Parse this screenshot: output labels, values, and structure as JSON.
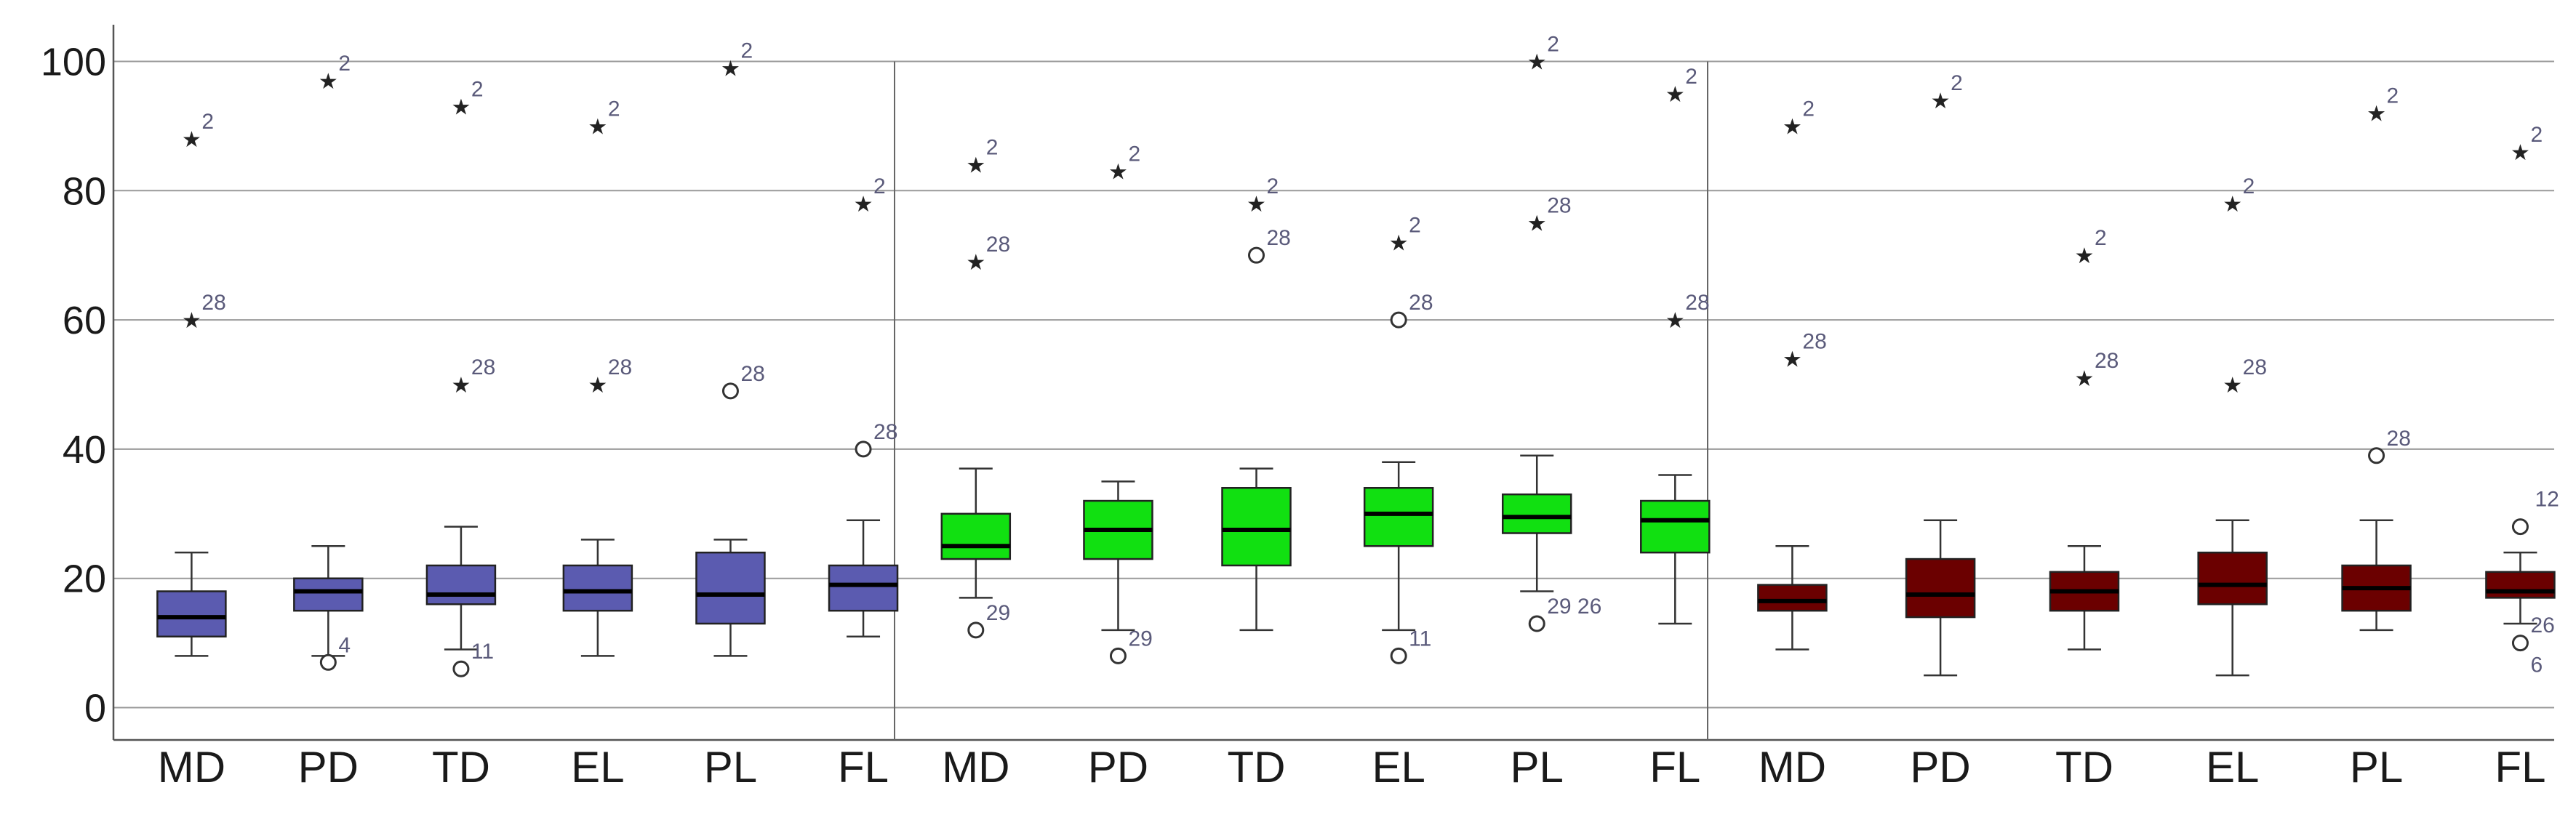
{
  "chart_data": {
    "type": "boxplot",
    "ylim": [
      -5,
      105
    ],
    "yticks": [
      0,
      20,
      40,
      60,
      80,
      100
    ],
    "grid": true,
    "categories": [
      "MD",
      "PD",
      "TD",
      "EL",
      "PL",
      "FL"
    ],
    "groups": [
      {
        "color": "#5b5bb0",
        "boxes": [
          {
            "cat": "MD",
            "whisker_low": 8,
            "q1": 11,
            "median": 14,
            "q3": 18,
            "whisker_high": 24,
            "outliers": [
              {
                "v": 60,
                "label": "28",
                "marker": "star"
              },
              {
                "v": 88,
                "label": "2",
                "marker": "star"
              }
            ]
          },
          {
            "cat": "PD",
            "whisker_low": 8,
            "q1": 15,
            "median": 18,
            "q3": 20,
            "whisker_high": 25,
            "outliers": [
              {
                "v": 7,
                "label": "4",
                "marker": "circle"
              },
              {
                "v": 97,
                "label": "2",
                "marker": "star"
              }
            ]
          },
          {
            "cat": "TD",
            "whisker_low": 9,
            "q1": 16,
            "median": 17.5,
            "q3": 22,
            "whisker_high": 28,
            "outliers": [
              {
                "v": 6,
                "label": "11",
                "marker": "circle"
              },
              {
                "v": 50,
                "label": "28",
                "marker": "star"
              },
              {
                "v": 93,
                "label": "2",
                "marker": "star"
              }
            ]
          },
          {
            "cat": "EL",
            "whisker_low": 8,
            "q1": 15,
            "median": 18,
            "q3": 22,
            "whisker_high": 26,
            "outliers": [
              {
                "v": 50,
                "label": "28",
                "marker": "star"
              },
              {
                "v": 90,
                "label": "2",
                "marker": "star"
              }
            ]
          },
          {
            "cat": "PL",
            "whisker_low": 8,
            "q1": 13,
            "median": 17.5,
            "q3": 24,
            "whisker_high": 26,
            "outliers": [
              {
                "v": 49,
                "label": "28",
                "marker": "circle"
              },
              {
                "v": 99,
                "label": "2",
                "marker": "star"
              }
            ]
          },
          {
            "cat": "FL",
            "whisker_low": 11,
            "q1": 15,
            "median": 19,
            "q3": 22,
            "whisker_high": 29,
            "outliers": [
              {
                "v": 40,
                "label": "28",
                "marker": "circle"
              },
              {
                "v": 78,
                "label": "2",
                "marker": "star"
              }
            ]
          }
        ]
      },
      {
        "color": "#11e011",
        "boxes": [
          {
            "cat": "MD",
            "whisker_low": 17,
            "q1": 23,
            "median": 25,
            "q3": 30,
            "whisker_high": 37,
            "outliers": [
              {
                "v": 12,
                "label": "29",
                "marker": "circle"
              },
              {
                "v": 69,
                "label": "28",
                "marker": "star"
              },
              {
                "v": 84,
                "label": "2",
                "marker": "star"
              }
            ]
          },
          {
            "cat": "PD",
            "whisker_low": 12,
            "q1": 23,
            "median": 27.5,
            "q3": 32,
            "whisker_high": 35,
            "outliers": [
              {
                "v": 8,
                "label": "29",
                "marker": "circle"
              },
              {
                "v": 83,
                "label": "2",
                "marker": "star"
              }
            ]
          },
          {
            "cat": "TD",
            "whisker_low": 12,
            "q1": 22,
            "median": 27.5,
            "q3": 34,
            "whisker_high": 37,
            "outliers": [
              {
                "v": 70,
                "label": "28",
                "marker": "circle"
              },
              {
                "v": 78,
                "label": "2",
                "marker": "star"
              }
            ]
          },
          {
            "cat": "EL",
            "whisker_low": 12,
            "q1": 25,
            "median": 30,
            "q3": 34,
            "whisker_high": 38,
            "outliers": [
              {
                "v": 8,
                "label": "11",
                "marker": "circle"
              },
              {
                "v": 60,
                "label": "28",
                "marker": "circle"
              },
              {
                "v": 72,
                "label": "2",
                "marker": "star"
              }
            ]
          },
          {
            "cat": "PL",
            "whisker_low": 18,
            "q1": 27,
            "median": 29.5,
            "q3": 33,
            "whisker_high": 39,
            "outliers": [
              {
                "v": 13,
                "label": "29 26",
                "marker": "circle"
              },
              {
                "v": 75,
                "label": "28",
                "marker": "star"
              },
              {
                "v": 100,
                "label": "2",
                "marker": "star"
              }
            ]
          },
          {
            "cat": "FL",
            "whisker_low": 13,
            "q1": 24,
            "median": 29,
            "q3": 32,
            "whisker_high": 36,
            "outliers": [
              {
                "v": 60,
                "label": "28",
                "marker": "star"
              },
              {
                "v": 95,
                "label": "2",
                "marker": "star"
              }
            ]
          }
        ]
      },
      {
        "color": "#6b0000",
        "boxes": [
          {
            "cat": "MD",
            "whisker_low": 9,
            "q1": 15,
            "median": 16.5,
            "q3": 19,
            "whisker_high": 25,
            "outliers": [
              {
                "v": 54,
                "label": "28",
                "marker": "star"
              },
              {
                "v": 90,
                "label": "2",
                "marker": "star"
              }
            ]
          },
          {
            "cat": "PD",
            "whisker_low": 5,
            "q1": 14,
            "median": 17.5,
            "q3": 23,
            "whisker_high": 29,
            "outliers": [
              {
                "v": 94,
                "label": "2",
                "marker": "star"
              }
            ]
          },
          {
            "cat": "TD",
            "whisker_low": 9,
            "q1": 15,
            "median": 18,
            "q3": 21,
            "whisker_high": 25,
            "outliers": [
              {
                "v": 51,
                "label": "28",
                "marker": "star"
              },
              {
                "v": 70,
                "label": "2",
                "marker": "star"
              }
            ]
          },
          {
            "cat": "EL",
            "whisker_low": 5,
            "q1": 16,
            "median": 19,
            "q3": 24,
            "whisker_high": 29,
            "outliers": [
              {
                "v": 50,
                "label": "28",
                "marker": "star"
              },
              {
                "v": 78,
                "label": "2",
                "marker": "star"
              }
            ]
          },
          {
            "cat": "PL",
            "whisker_low": 12,
            "q1": 15,
            "median": 18.5,
            "q3": 22,
            "whisker_high": 29,
            "outliers": [
              {
                "v": 39,
                "label": "28",
                "marker": "circle"
              },
              {
                "v": 92,
                "label": "2",
                "marker": "star"
              }
            ]
          },
          {
            "cat": "FL",
            "whisker_low": 13,
            "q1": 17,
            "median": 18,
            "q3": 21,
            "whisker_high": 24,
            "outliers": [
              {
                "v": 10,
                "label": "6",
                "marker": "circle",
                "label_pos": "below"
              },
              {
                "v": 13,
                "label": "26",
                "marker": "none"
              },
              {
                "v": 28,
                "label": "12",
                "marker": "circle",
                "label_pos": "above"
              },
              {
                "v": 86,
                "label": "2",
                "marker": "star"
              }
            ]
          }
        ]
      }
    ]
  }
}
